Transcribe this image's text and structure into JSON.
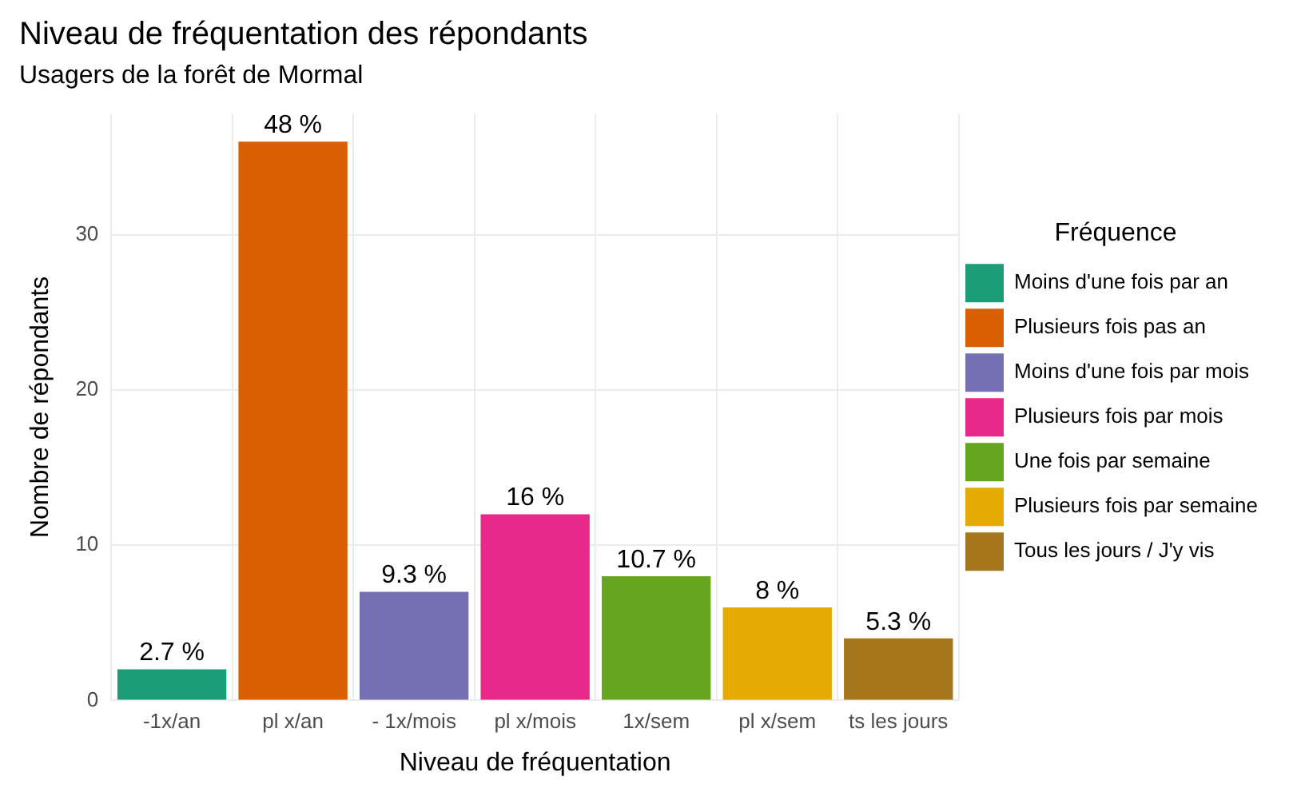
{
  "chart_data": {
    "type": "bar",
    "title": "Niveau de fréquentation des répondants",
    "subtitle": "Usagers de la forêt de Mormal",
    "xlabel": "Niveau de fréquentation",
    "ylabel": "Nombre de répondants",
    "legend_title": "Fréquence",
    "categories": [
      "-1x/an",
      "pl x/an",
      "- 1x/mois",
      "pl x/mois",
      "1x/sem",
      "pl x/sem",
      "ts les jours"
    ],
    "stacked": true,
    "ylim": [
      0,
      37.8
    ],
    "yticks": [
      0,
      10,
      20,
      30
    ],
    "grid": true,
    "legend": "right",
    "annotations": [
      {
        "text": "2.7 %",
        "x": "-1x/an",
        "y": 2
      },
      {
        "text": "48 %",
        "x": "pl x/an",
        "y": 36
      },
      {
        "text": "9.3 %",
        "x": "- 1x/mois",
        "y": 7
      },
      {
        "text": "16 %",
        "x": "pl x/mois",
        "y": 12
      },
      {
        "text": "10.7 %",
        "x": "1x/sem",
        "y": 8
      },
      {
        "text": "8 %",
        "x": "pl x/sem",
        "y": 6
      },
      {
        "text": "5.3 %",
        "x": "ts les jours",
        "y": 4
      }
    ],
    "series": [
      {
        "name": "Moins d'une fois par an",
        "color": "#1b9e77",
        "values": [
          2,
          null,
          null,
          null,
          null,
          null,
          null
        ]
      },
      {
        "name": "Plusieurs fois pas an",
        "color": "#d95f02",
        "values": [
          null,
          36,
          null,
          null,
          null,
          null,
          null
        ]
      },
      {
        "name": "Moins d'une fois par mois",
        "color": "#7570b3",
        "values": [
          null,
          null,
          7,
          null,
          null,
          null,
          null
        ]
      },
      {
        "name": "Plusieurs fois par mois",
        "color": "#e7298a",
        "values": [
          null,
          null,
          null,
          12,
          null,
          null,
          null
        ]
      },
      {
        "name": "Une fois par semaine",
        "color": "#66a61e",
        "values": [
          null,
          null,
          null,
          null,
          8,
          null,
          null
        ]
      },
      {
        "name": "Plusieurs fois par semaine",
        "color": "#e6ab02",
        "values": [
          null,
          null,
          null,
          null,
          null,
          6,
          null
        ]
      },
      {
        "name": "Tous les jours / J'y vis",
        "color": "#a6761d",
        "values": [
          null,
          null,
          null,
          null,
          null,
          null,
          4
        ]
      }
    ]
  }
}
